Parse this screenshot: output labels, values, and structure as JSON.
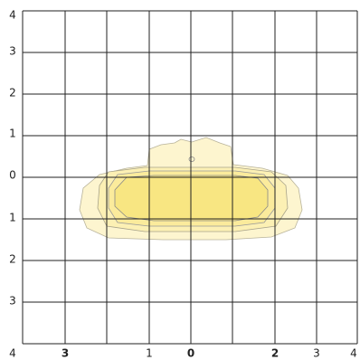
{
  "y_labels": [
    "4",
    "3",
    "2",
    "1",
    "0",
    "1",
    "2",
    "3"
  ],
  "x_labels": [
    "4",
    "3",
    "1",
    "0",
    "2",
    "3",
    "4"
  ]
}
